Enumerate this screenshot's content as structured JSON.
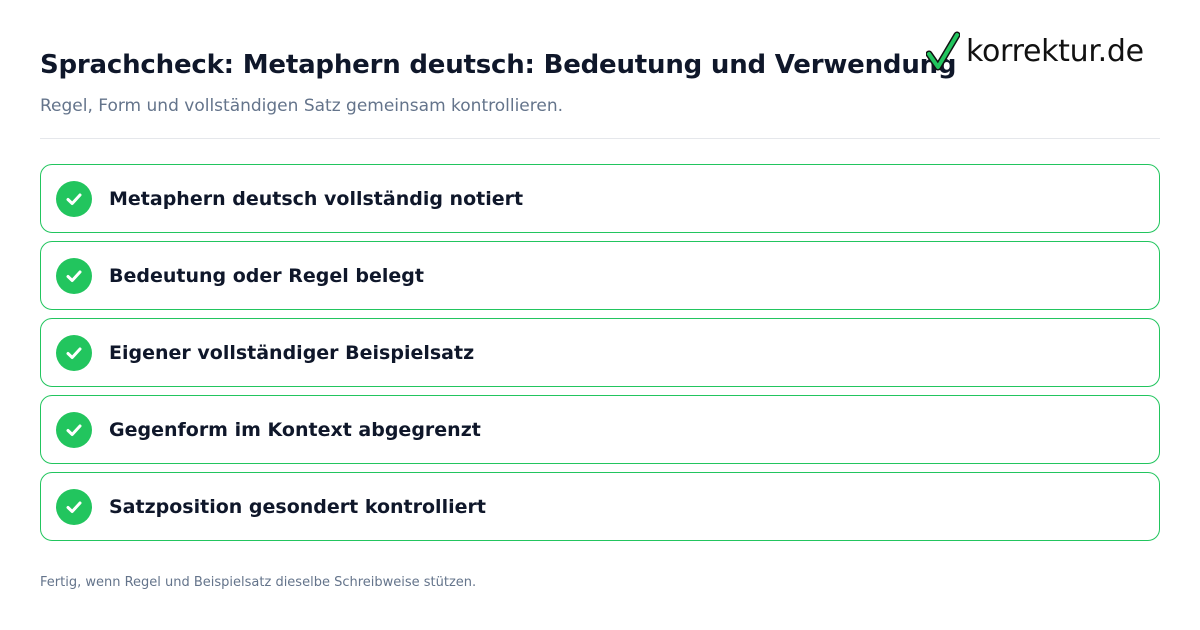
{
  "header": {
    "title": "Sprachcheck: Metaphern deutsch: Bedeutung und Verwendung",
    "subtitle": "Regel, Form und vollständigen Satz gemeinsam kontrollieren."
  },
  "logo": {
    "text": "korrektur.de",
    "icon": "checkmark-icon",
    "check_color": "#22c55e"
  },
  "checklist": {
    "items": [
      {
        "label": "Metaphern deutsch vollständig notiert",
        "checked": true
      },
      {
        "label": "Bedeutung oder Regel belegt",
        "checked": true
      },
      {
        "label": "Eigener vollständiger Beispielsatz",
        "checked": true
      },
      {
        "label": "Gegenform im Kontext abgegrenzt",
        "checked": true
      },
      {
        "label": "Satzposition gesondert kontrolliert",
        "checked": true
      }
    ]
  },
  "footer": {
    "text": "Fertig, wenn Regel und Beispielsatz dieselbe Schreibweise stützen."
  },
  "colors": {
    "accent": "#22c55e",
    "title": "#0f172a",
    "muted": "#64748b",
    "divider": "#e5e7eb"
  }
}
